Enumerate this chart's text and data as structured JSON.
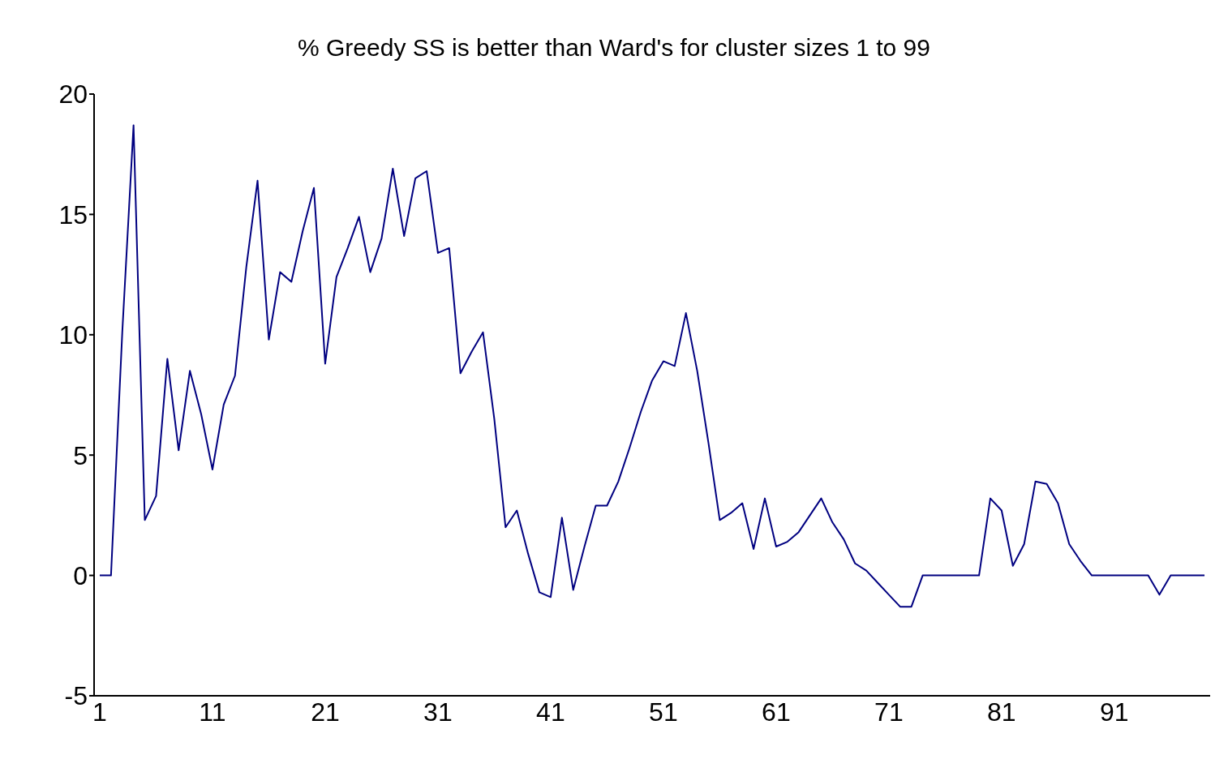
{
  "chart_data": {
    "type": "line",
    "title": "% Greedy SS is better than Ward's for cluster sizes 1 to 99",
    "categories": [
      "1",
      null,
      null,
      null,
      null,
      null,
      null,
      null,
      null,
      null,
      "11",
      null,
      null,
      null,
      null,
      null,
      null,
      null,
      null,
      null,
      "21",
      null,
      null,
      null,
      null,
      null,
      null,
      null,
      null,
      null,
      "31",
      null,
      null,
      null,
      null,
      null,
      null,
      null,
      null,
      null,
      "41",
      null,
      null,
      null,
      null,
      null,
      null,
      null,
      null,
      null,
      "51",
      null,
      null,
      null,
      null,
      null,
      null,
      null,
      null,
      null,
      "61",
      null,
      null,
      null,
      null,
      null,
      null,
      null,
      null,
      null,
      "71",
      null,
      null,
      null,
      null,
      null,
      null,
      null,
      null,
      null,
      "81",
      null,
      null,
      null,
      null,
      null,
      null,
      null,
      null,
      null,
      "91",
      null,
      null,
      null,
      null,
      null,
      null,
      null,
      null
    ],
    "series": [
      {
        "color": "#000080",
        "values": [
          0,
          0,
          10.1,
          18.7,
          2.3,
          3.3,
          9.0,
          5.2,
          8.5,
          6.7,
          4.4,
          7.1,
          8.3,
          12.8,
          16.4,
          9.8,
          12.6,
          12.2,
          14.3,
          16.1,
          8.8,
          12.4,
          13.6,
          14.9,
          12.6,
          14.0,
          16.9,
          14.1,
          16.5,
          16.8,
          13.4,
          13.6,
          8.4,
          9.3,
          10.1,
          6.5,
          2.0,
          2.7,
          0.9,
          -0.7,
          -0.9,
          2.4,
          -0.6,
          1.2,
          2.9,
          2.9,
          3.9,
          5.3,
          6.8,
          8.1,
          8.9,
          8.7,
          10.9,
          8.5,
          5.5,
          2.3,
          2.6,
          3.0,
          1.1,
          3.2,
          1.2,
          1.4,
          1.8,
          2.5,
          3.2,
          2.2,
          1.5,
          0.5,
          0.2,
          -0.3,
          -0.8,
          -1.3,
          -1.3,
          0,
          0,
          0,
          0,
          0,
          0,
          3.2,
          2.7,
          0.4,
          1.3,
          3.9,
          3.8,
          3.0,
          1.3,
          0.6,
          0,
          0,
          0,
          0,
          0,
          0,
          -0.8,
          0,
          0,
          0,
          0
        ]
      }
    ],
    "ylim": [
      -5,
      20
    ],
    "yticks": [
      -5,
      0,
      5,
      10,
      15,
      20
    ],
    "grid": false,
    "legend": false,
    "marker": "none",
    "line_style": "solid"
  }
}
